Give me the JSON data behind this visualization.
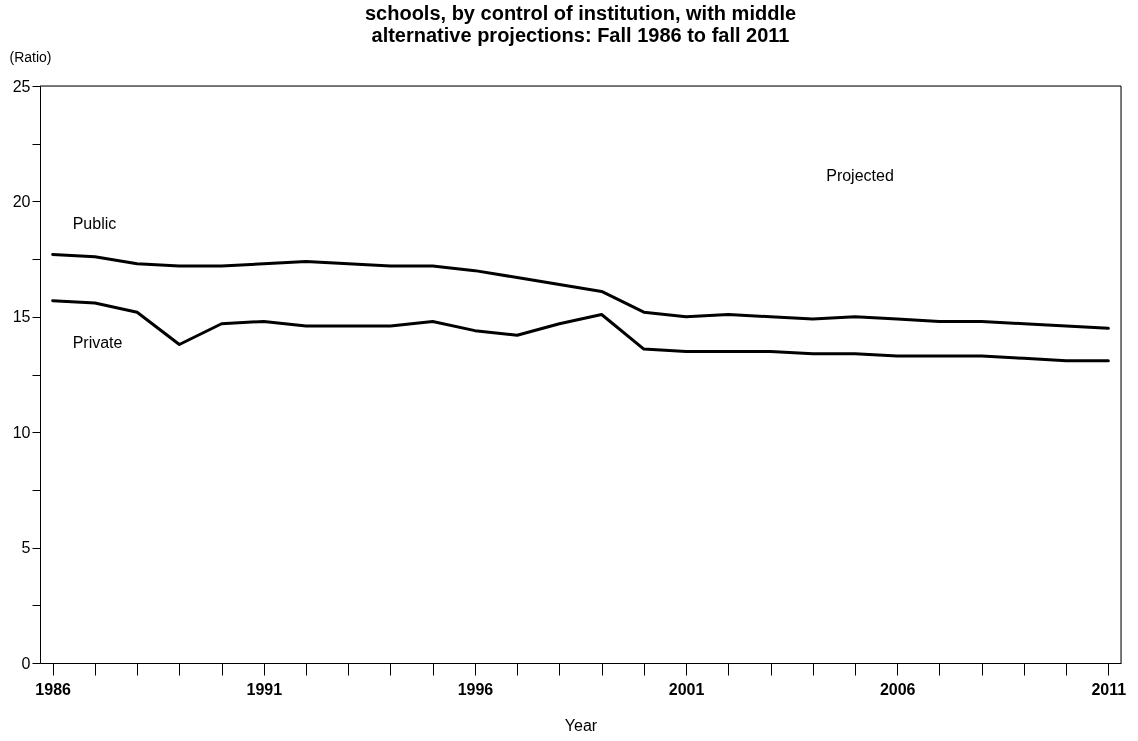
{
  "chart_data": {
    "type": "line",
    "title": [
      "schools, by control of institution, with middle",
      "alternative projections: Fall 1986 to fall 2011"
    ],
    "xlabel": "Year",
    "ylabel": "(Ratio)",
    "x": [
      1986,
      1987,
      1988,
      1989,
      1990,
      1991,
      1992,
      1993,
      1994,
      1995,
      1996,
      1997,
      1998,
      1999,
      2000,
      2001,
      2002,
      2003,
      2004,
      2005,
      2006,
      2007,
      2008,
      2009,
      2010,
      2011
    ],
    "series": [
      {
        "name": "Public",
        "color": "#000000",
        "values": [
          17.7,
          17.6,
          17.3,
          17.2,
          17.2,
          17.3,
          17.4,
          17.3,
          17.2,
          17.2,
          17.0,
          16.7,
          16.4,
          16.1,
          15.2,
          15.0,
          15.1,
          15.0,
          14.9,
          15.0,
          14.9,
          14.8,
          14.8,
          14.7,
          14.6,
          14.5
        ]
      },
      {
        "name": "Private",
        "color": "#000000",
        "values": [
          15.7,
          15.6,
          15.2,
          13.8,
          14.7,
          14.8,
          14.6,
          14.6,
          14.6,
          14.8,
          14.4,
          14.2,
          14.7,
          15.1,
          13.6,
          13.5,
          13.5,
          13.5,
          13.4,
          13.4,
          13.3,
          13.3,
          13.3,
          13.2,
          13.1,
          13.1
        ]
      }
    ],
    "annotations": [
      "Projected"
    ],
    "xlim": [
      1985.7,
      2011.3
    ],
    "xticks": [
      1986,
      {
        "value": 1987,
        "label": null
      },
      {
        "value": 1988,
        "label": null
      },
      {
        "value": 1989,
        "label": null
      },
      {
        "value": 1990,
        "label": null
      },
      1991,
      {
        "value": 1992,
        "label": null
      },
      {
        "value": 1993,
        "label": null
      },
      {
        "value": 1994,
        "label": null
      },
      {
        "value": 1995,
        "label": null
      },
      1996,
      {
        "value": 1997,
        "label": null
      },
      {
        "value": 1998,
        "label": null
      },
      {
        "value": 1999,
        "label": null
      },
      {
        "value": 2000,
        "label": null
      },
      2001,
      {
        "value": 2002,
        "label": null
      },
      {
        "value": 2003,
        "label": null
      },
      {
        "value": 2004,
        "label": null
      },
      {
        "value": 2005,
        "label": null
      },
      2006,
      {
        "value": 2007,
        "label": null
      },
      {
        "value": 2008,
        "label": null
      },
      {
        "value": 2009,
        "label": null
      },
      {
        "value": 2010,
        "label": null
      },
      2011
    ],
    "ylim": [
      0,
      25
    ],
    "yticks": [
      0,
      {
        "value": 2.5,
        "label": null
      },
      5,
      {
        "value": 7.5,
        "label": null
      },
      10,
      {
        "value": 12.5,
        "label": null
      },
      15,
      {
        "value": 17.5,
        "label": null
      },
      20,
      {
        "value": 22.5,
        "label": null
      },
      25
    ],
    "grid": false,
    "legend": false,
    "marker": "none",
    "line_style": "solid"
  }
}
